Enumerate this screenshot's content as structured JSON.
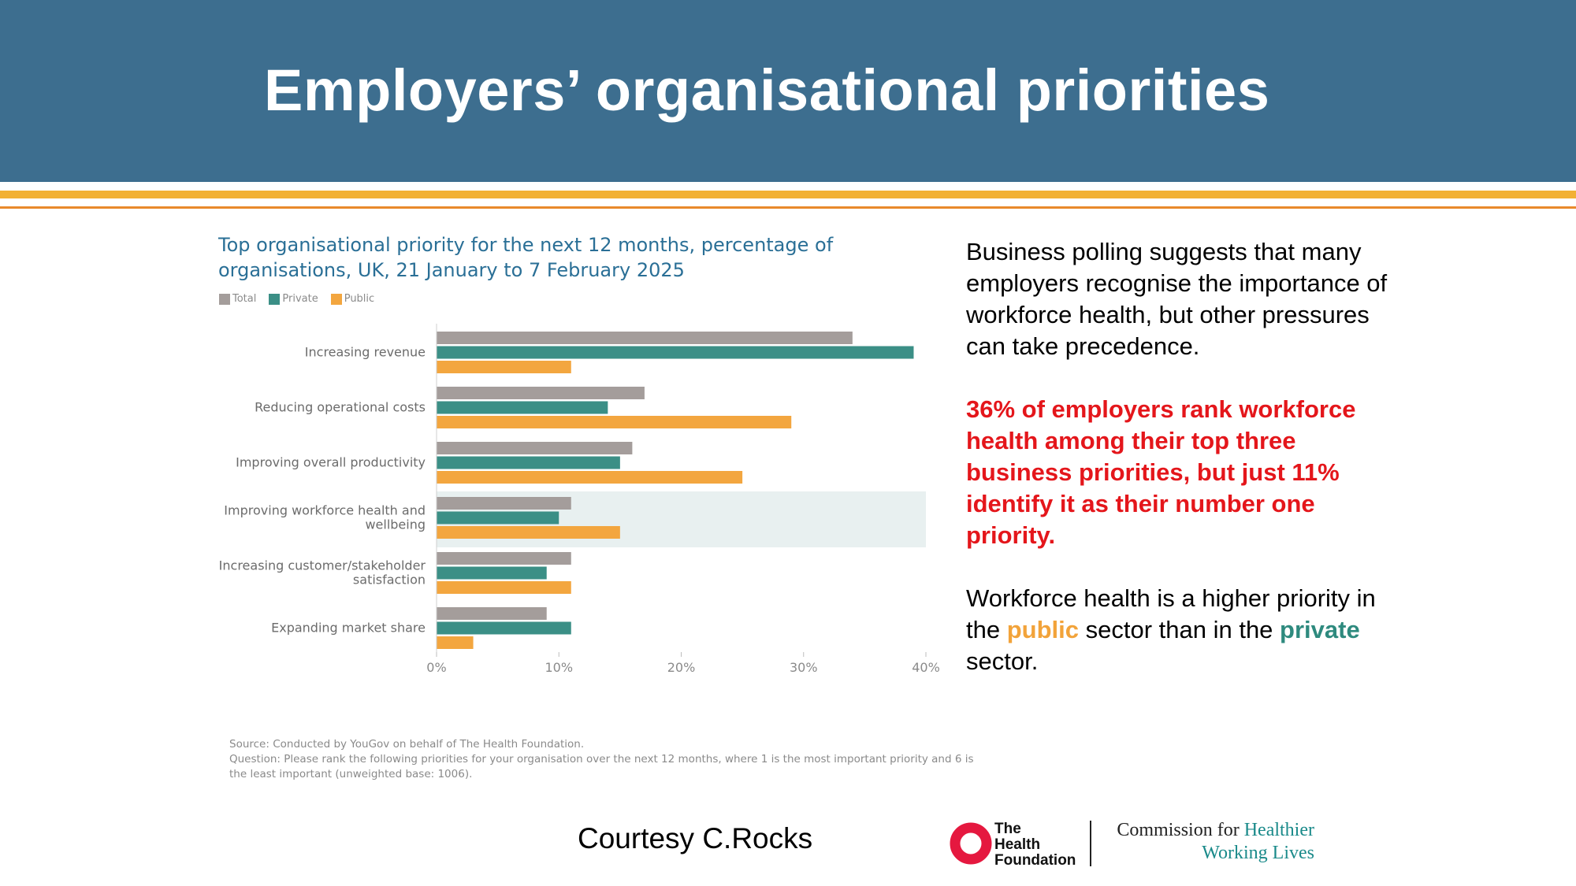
{
  "header": {
    "title": "Employers’ organisational priorities"
  },
  "colors": {
    "header_bg": "#3d6e8f",
    "stripe_yellow": "#f2b134",
    "stripe_orange": "#e98a2b",
    "total": "#a49d9b",
    "private": "#3b8f86",
    "public": "#f3a63f",
    "highlight_band": "#e8f0f0",
    "red_text": "#e4161b"
  },
  "chart_data": {
    "type": "bar",
    "orientation": "horizontal",
    "title": "Top organisational priority for the next 12 months, percentage of organisations, UK, 21 January to 7 February 2025",
    "categories": [
      "Increasing revenue",
      "Reducing operational costs",
      "Improving overall productivity",
      "Improving workforce health and wellbeing",
      "Increasing customer/stakeholder satisfaction",
      "Expanding market share"
    ],
    "category_lines": [
      [
        "Increasing revenue"
      ],
      [
        "Reducing operational costs"
      ],
      [
        "Improving overall productivity"
      ],
      [
        "Improving workforce health and",
        "wellbeing"
      ],
      [
        "Increasing customer/stakeholder",
        "satisfaction"
      ],
      [
        "Expanding market share"
      ]
    ],
    "series": [
      {
        "name": "Total",
        "color": "#a49d9b",
        "values": [
          34,
          17,
          16,
          11,
          11,
          9
        ]
      },
      {
        "name": "Private",
        "color": "#3b8f86",
        "values": [
          39,
          14,
          15,
          10,
          9,
          11
        ]
      },
      {
        "name": "Public",
        "color": "#f3a63f",
        "values": [
          11,
          29,
          25,
          15,
          11,
          3
        ]
      }
    ],
    "xlim": [
      0,
      40
    ],
    "xticks": [
      "0%",
      "10%",
      "20%",
      "30%",
      "40%"
    ],
    "highlighted_category": "Improving workforce health and wellbeing",
    "legend_position": "top-left"
  },
  "source": {
    "line1": "Source: Conducted by YouGov on behalf of The Health Foundation.",
    "line2": "Question: Please rank the following priorities for your organisation over the next 12 months, where 1 is the most important priority and 6 is the least important (unweighted base: 1006)."
  },
  "side": {
    "para1": "Business polling suggests that many employers recognise the importance of workforce health, but other pressures can take precedence.",
    "para2": "36% of employers rank workforce health among their top three business priorities, but just 11% identify it as their number one priority.",
    "para3_a": "Workforce health is a higher priority in the ",
    "para3_public": "public",
    "para3_b": " sector than in the ",
    "para3_private": "private",
    "para3_c": " sector."
  },
  "footer": {
    "courtesy": "Courtesy C.Rocks",
    "logo_line1": "The",
    "logo_line2": "Health",
    "logo_line3": "Foundation",
    "commission_a": "Commission for ",
    "commission_b": "Healthier",
    "commission_c": "Working Lives"
  }
}
